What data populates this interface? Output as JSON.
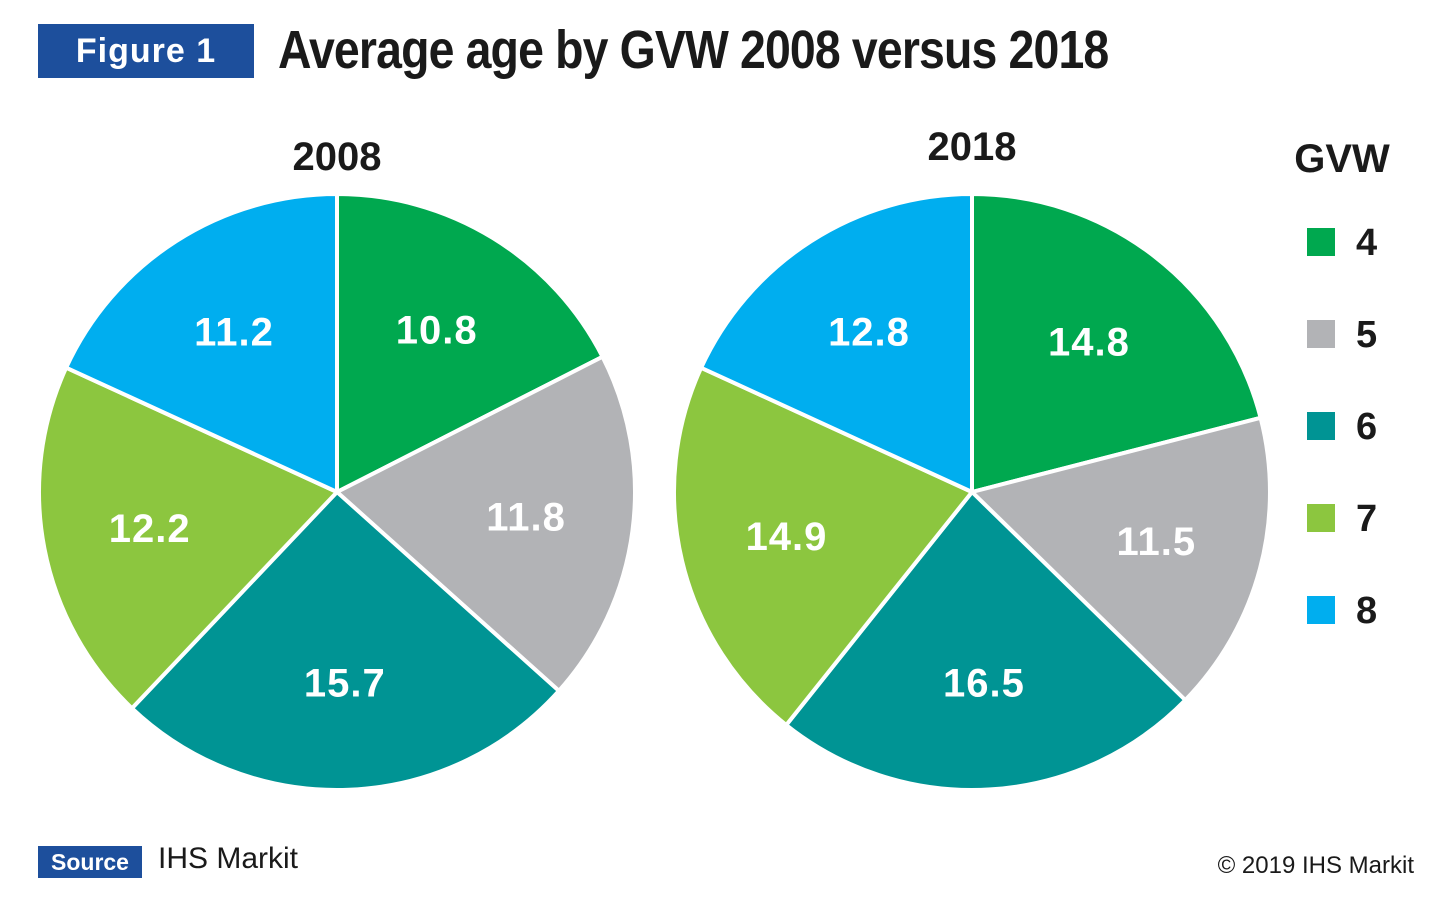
{
  "figure_label": "Figure 1",
  "title": "Average age by GVW 2008 versus 2018",
  "source_label": "Source",
  "source_text": "IHS Markit",
  "copyright": "© 2019 IHS Markit",
  "colors": {
    "brand_blue": "#1d4f9c",
    "4": "#00a84f",
    "5": "#b2b3b6",
    "6": "#009494",
    "7": "#8cc63f",
    "8": "#00aeef"
  },
  "chart_data": [
    {
      "type": "pie",
      "title": "2008",
      "legend_title": "GVW",
      "categories": [
        "4",
        "5",
        "6",
        "7",
        "8"
      ],
      "values": [
        10.8,
        11.8,
        15.7,
        12.2,
        11.2
      ]
    },
    {
      "type": "pie",
      "title": "2018",
      "legend_title": "GVW",
      "legend_position": "right",
      "categories": [
        "4",
        "5",
        "6",
        "7",
        "8"
      ],
      "values": [
        14.8,
        11.5,
        16.5,
        14.9,
        12.8
      ]
    }
  ]
}
